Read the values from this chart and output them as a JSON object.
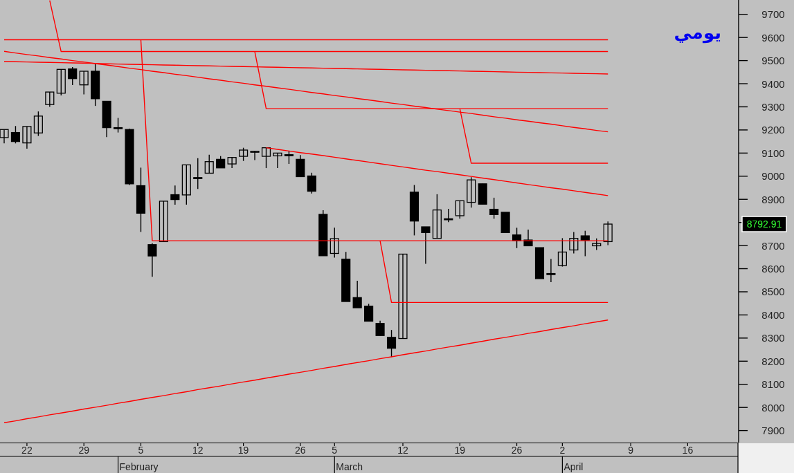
{
  "chart_data": {
    "type": "candlestick",
    "title": "يومي",
    "categories": [
      null,
      null,
      "22",
      null,
      null,
      null,
      null,
      "29",
      null,
      null,
      null,
      null,
      "5",
      null,
      null,
      null,
      null,
      "12",
      null,
      null,
      null,
      "19",
      null,
      null,
      null,
      null,
      "26",
      null,
      null,
      "5",
      null,
      null,
      null,
      null,
      null,
      "12",
      null,
      null,
      null,
      null,
      "19",
      null,
      null,
      null,
      null,
      "26",
      null,
      null,
      null,
      "2",
      null,
      null,
      null,
      null,
      null,
      "9",
      null,
      null,
      null,
      null,
      "16",
      null,
      null,
      null,
      null
    ],
    "ohlc": [
      [
        9167,
        9202,
        9142,
        9202
      ],
      [
        9189,
        9217,
        9142,
        9150
      ],
      [
        9144,
        9215,
        9119,
        9215
      ],
      [
        9187,
        9280,
        9174,
        9260
      ],
      [
        9310,
        9364,
        9300,
        9364
      ],
      [
        9359,
        9462,
        9349,
        9462
      ],
      [
        9464,
        9472,
        9394,
        9422
      ],
      [
        9395,
        9454,
        9354,
        9454
      ],
      [
        9454,
        9484,
        9304,
        9335
      ],
      [
        9324,
        9324,
        9169,
        9210
      ],
      [
        9210,
        9252,
        9189,
        9209
      ],
      [
        9202,
        9206,
        8962,
        8967
      ],
      [
        8959,
        9037,
        8759,
        8840
      ],
      [
        8704,
        8710,
        8565,
        8655
      ],
      [
        8717,
        8892,
        8717,
        8892
      ],
      [
        8920,
        8960,
        8877,
        8899
      ],
      [
        8919,
        9049,
        8877,
        9049
      ],
      [
        8994,
        9078,
        8945,
        8993
      ],
      [
        9013,
        9093,
        9013,
        9063
      ],
      [
        9073,
        9087,
        9036,
        9036
      ],
      [
        9053,
        9081,
        9035,
        9081
      ],
      [
        9086,
        9123,
        9066,
        9113
      ],
      [
        9107,
        9108,
        9070,
        9108
      ],
      [
        9086,
        9123,
        9035,
        9123
      ],
      [
        9088,
        9100,
        9035,
        9100
      ],
      [
        9093,
        9108,
        9053,
        9092
      ],
      [
        9073,
        9091,
        8998,
        8998
      ],
      [
        9001,
        9015,
        8925,
        8935
      ],
      [
        8835,
        8853,
        8656,
        8656
      ],
      [
        8666,
        8777,
        8648,
        8730
      ],
      [
        8641,
        8673,
        8458,
        8458
      ],
      [
        8475,
        8548,
        8431,
        8431
      ],
      [
        8438,
        8448,
        8373,
        8373
      ],
      [
        8363,
        8375,
        8311,
        8311
      ],
      [
        8303,
        8335,
        8218,
        8256
      ],
      [
        8298,
        8663,
        8298,
        8663
      ],
      [
        8931,
        8962,
        8744,
        8806
      ],
      [
        8781,
        8781,
        8621,
        8756
      ],
      [
        8731,
        8922,
        8731,
        8854
      ],
      [
        8816,
        8859,
        8801,
        8812
      ],
      [
        8829,
        8894,
        8816,
        8894
      ],
      [
        8887,
        8996,
        8864,
        8984
      ],
      [
        8967,
        8967,
        8879,
        8879
      ],
      [
        8857,
        8907,
        8816,
        8834
      ],
      [
        8844,
        8844,
        8756,
        8756
      ],
      [
        8746,
        8777,
        8689,
        8721
      ],
      [
        8724,
        8769,
        8699,
        8699
      ],
      [
        8691,
        8691,
        8557,
        8557
      ],
      [
        8579,
        8642,
        8542,
        8578
      ],
      [
        8614,
        8732,
        8609,
        8672
      ],
      [
        8681,
        8759,
        8666,
        8731
      ],
      [
        8742,
        8764,
        8654,
        8724
      ],
      [
        8699,
        8731,
        8681,
        8709
      ],
      [
        8717,
        8804,
        8702,
        8792.91
      ],
      null,
      null,
      null,
      null,
      null,
      null,
      null,
      null,
      null,
      null,
      null
    ],
    "series": [
      {
        "type": "line",
        "color": "#ff0000",
        "values": [
          9590,
          9590,
          9590,
          9590,
          9590,
          9590,
          9590,
          9590,
          9590,
          9590,
          9590,
          9590,
          9590,
          9590,
          9590,
          9590,
          9590,
          9590,
          9590,
          9590,
          9590,
          9590,
          9590,
          9590,
          9590,
          9590,
          9590,
          9590,
          9590,
          9590,
          9590,
          9590,
          9590,
          9590,
          9590,
          9590,
          9590,
          9590,
          9590,
          9590,
          9590,
          9590,
          9590,
          9590,
          9590,
          9590,
          9590,
          9590,
          9590,
          9590,
          9590,
          9590,
          9590,
          9590,
          null,
          null,
          null,
          null,
          null,
          null,
          null,
          null,
          null,
          null,
          null
        ]
      },
      {
        "type": "line",
        "color": "#ff0000",
        "values": [
          null,
          null,
          null,
          null,
          null,
          null,
          null,
          null,
          null,
          null,
          null,
          null,
          9590,
          8721,
          8721,
          8721,
          8721,
          8721,
          8721,
          8721,
          8721,
          8721,
          8721,
          8721,
          8721,
          8721,
          8721,
          8721,
          8721,
          8721,
          8721,
          8721,
          8721,
          8721,
          8721,
          8721,
          8721,
          8721,
          8721,
          8721,
          8721,
          8721,
          8721,
          8721,
          8721,
          8721,
          8721,
          8721,
          8721,
          8721,
          8721,
          8721,
          8721,
          8721,
          null,
          null,
          null,
          null,
          null,
          null,
          null,
          null,
          null,
          null,
          null
        ]
      },
      {
        "type": "line",
        "color": "#ff0000",
        "values": [
          null,
          null,
          null,
          null,
          9760,
          9539,
          9539,
          9539,
          9539,
          9539,
          9539,
          9539,
          9539,
          9539,
          9539,
          9539,
          9539,
          9539,
          9539,
          9539,
          9539,
          9539,
          9539,
          9539,
          9539,
          9539,
          9539,
          9539,
          9539,
          9539,
          9539,
          9539,
          9539,
          9539,
          9539,
          9539,
          9539,
          9539,
          9539,
          9539,
          9539,
          9539,
          9539,
          9539,
          9539,
          9539,
          9539,
          9539,
          9539,
          9539,
          9539,
          9539,
          9539,
          9539,
          null,
          null,
          null,
          null,
          null,
          null,
          null,
          null,
          null,
          null,
          null
        ]
      },
      {
        "type": "line",
        "color": "#ff0000",
        "values": [
          9540,
          9533,
          9526,
          9520,
          9513,
          9507,
          9500,
          9494,
          9487,
          9481,
          9474,
          9467,
          9461,
          9454,
          9448,
          9441,
          9435,
          9428,
          9421,
          9415,
          9408,
          9402,
          9395,
          9389,
          9382,
          9376,
          9369,
          9362,
          9356,
          9349,
          9343,
          9336,
          9330,
          9323,
          9316,
          9310,
          9303,
          9297,
          9290,
          9284,
          9277,
          9271,
          9264,
          9257,
          9251,
          9244,
          9238,
          9231,
          9225,
          9218,
          9211,
          9205,
          9198,
          9192,
          null,
          null,
          null,
          null,
          null,
          null,
          null,
          null,
          null,
          null,
          null
        ]
      },
      {
        "type": "line",
        "color": "#ff0000",
        "values": [
          9496,
          9495,
          9494,
          9493,
          9492,
          9491,
          9490,
          9489,
          9488,
          9486,
          9485,
          9484,
          9483,
          9482,
          9481,
          9480,
          9479,
          9478,
          9477,
          9476,
          9475,
          9474,
          9473,
          9472,
          9471,
          9470,
          9469,
          9468,
          9467,
          9466,
          9465,
          9464,
          9463,
          9462,
          9461,
          9460,
          9459,
          9458,
          9457,
          9456,
          9455,
          9454,
          9453,
          9452,
          9451,
          9450,
          9449,
          9448,
          9447,
          9446,
          9445,
          9444,
          9443,
          9442,
          null,
          null,
          null,
          null,
          null,
          null,
          null,
          null,
          null,
          null,
          null
        ]
      },
      {
        "type": "line",
        "color": "#ff0000",
        "values": [
          null,
          null,
          null,
          null,
          null,
          null,
          null,
          null,
          null,
          null,
          null,
          null,
          null,
          null,
          null,
          null,
          null,
          null,
          null,
          null,
          null,
          null,
          9539,
          9292,
          9292,
          9292,
          9292,
          9292,
          9292,
          9292,
          9292,
          9292,
          9292,
          9292,
          9292,
          9292,
          9292,
          9292,
          9292,
          9292,
          9292,
          9292,
          9292,
          9292,
          9292,
          9292,
          9292,
          9292,
          9292,
          9292,
          9292,
          9292,
          9292,
          9292,
          null,
          null,
          null,
          null,
          null,
          null,
          null,
          null,
          null,
          null,
          null
        ]
      },
      {
        "type": "line",
        "color": "#ff0000",
        "values": [
          null,
          null,
          null,
          null,
          null,
          null,
          null,
          null,
          null,
          null,
          null,
          null,
          null,
          null,
          null,
          null,
          null,
          null,
          null,
          null,
          null,
          null,
          null,
          null,
          null,
          null,
          null,
          null,
          null,
          null,
          null,
          null,
          null,
          null,
          null,
          null,
          null,
          null,
          null,
          null,
          9292,
          9056,
          9056,
          9056,
          9056,
          9056,
          9056,
          9056,
          9056,
          9056,
          9056,
          9056,
          9056,
          9056,
          null,
          null,
          null,
          null,
          null,
          null,
          null,
          null,
          null,
          null,
          null
        ]
      },
      {
        "type": "line",
        "color": "#ff0000",
        "values": [
          null,
          null,
          null,
          null,
          null,
          null,
          null,
          null,
          null,
          null,
          null,
          null,
          null,
          null,
          null,
          null,
          null,
          null,
          null,
          null,
          null,
          null,
          null,
          9123,
          9116,
          9109,
          9102,
          9096,
          9089,
          9082,
          9075,
          9068,
          9061,
          9054,
          9047,
          9040,
          9033,
          9026,
          9020,
          9013,
          9006,
          8999,
          8992,
          8985,
          8978,
          8971,
          8964,
          8957,
          8950,
          8944,
          8937,
          8930,
          8923,
          8916,
          null,
          null,
          null,
          null,
          null,
          null,
          null,
          null,
          null,
          null,
          null
        ]
      },
      {
        "type": "line",
        "color": "#ff0000",
        "values": [
          null,
          null,
          null,
          null,
          null,
          null,
          null,
          null,
          null,
          null,
          null,
          null,
          null,
          null,
          null,
          null,
          null,
          null,
          null,
          null,
          null,
          null,
          null,
          null,
          null,
          null,
          null,
          null,
          null,
          null,
          null,
          null,
          null,
          8721,
          8454,
          8454,
          8454,
          8454,
          8454,
          8454,
          8454,
          8454,
          8454,
          8454,
          8454,
          8454,
          8454,
          8454,
          8454,
          8454,
          8454,
          8454,
          8454,
          8454,
          null,
          null,
          null,
          null,
          null,
          null,
          null,
          null,
          null,
          null,
          null
        ]
      },
      {
        "type": "line",
        "color": "#ff0000",
        "values": [
          7934,
          7942,
          7951,
          7959,
          7968,
          7976,
          7984,
          7993,
          8001,
          8009,
          8018,
          8026,
          8035,
          8043,
          8051,
          8060,
          8068,
          8077,
          8085,
          8093,
          8102,
          8110,
          8118,
          8127,
          8135,
          8144,
          8152,
          8160,
          8169,
          8177,
          8186,
          8194,
          8202,
          8211,
          8219,
          8228,
          8236,
          8244,
          8253,
          8261,
          8269,
          8278,
          8286,
          8295,
          8303,
          8311,
          8320,
          8328,
          8337,
          8345,
          8353,
          8362,
          8370,
          8378,
          null,
          null,
          null,
          null,
          null,
          null,
          null,
          null,
          null,
          null,
          null
        ]
      }
    ],
    "ylim": [
      7848,
      9762
    ],
    "yticks": [
      7900,
      8000,
      8100,
      8200,
      8300,
      8400,
      8500,
      8600,
      8700,
      {
        "value": 8800,
        "label": null
      },
      8900,
      9000,
      9100,
      9200,
      9300,
      9400,
      9500,
      9600,
      9700
    ],
    "annotations": [
      "February",
      "March",
      "April",
      "8792.91"
    ],
    "grid": false
  }
}
